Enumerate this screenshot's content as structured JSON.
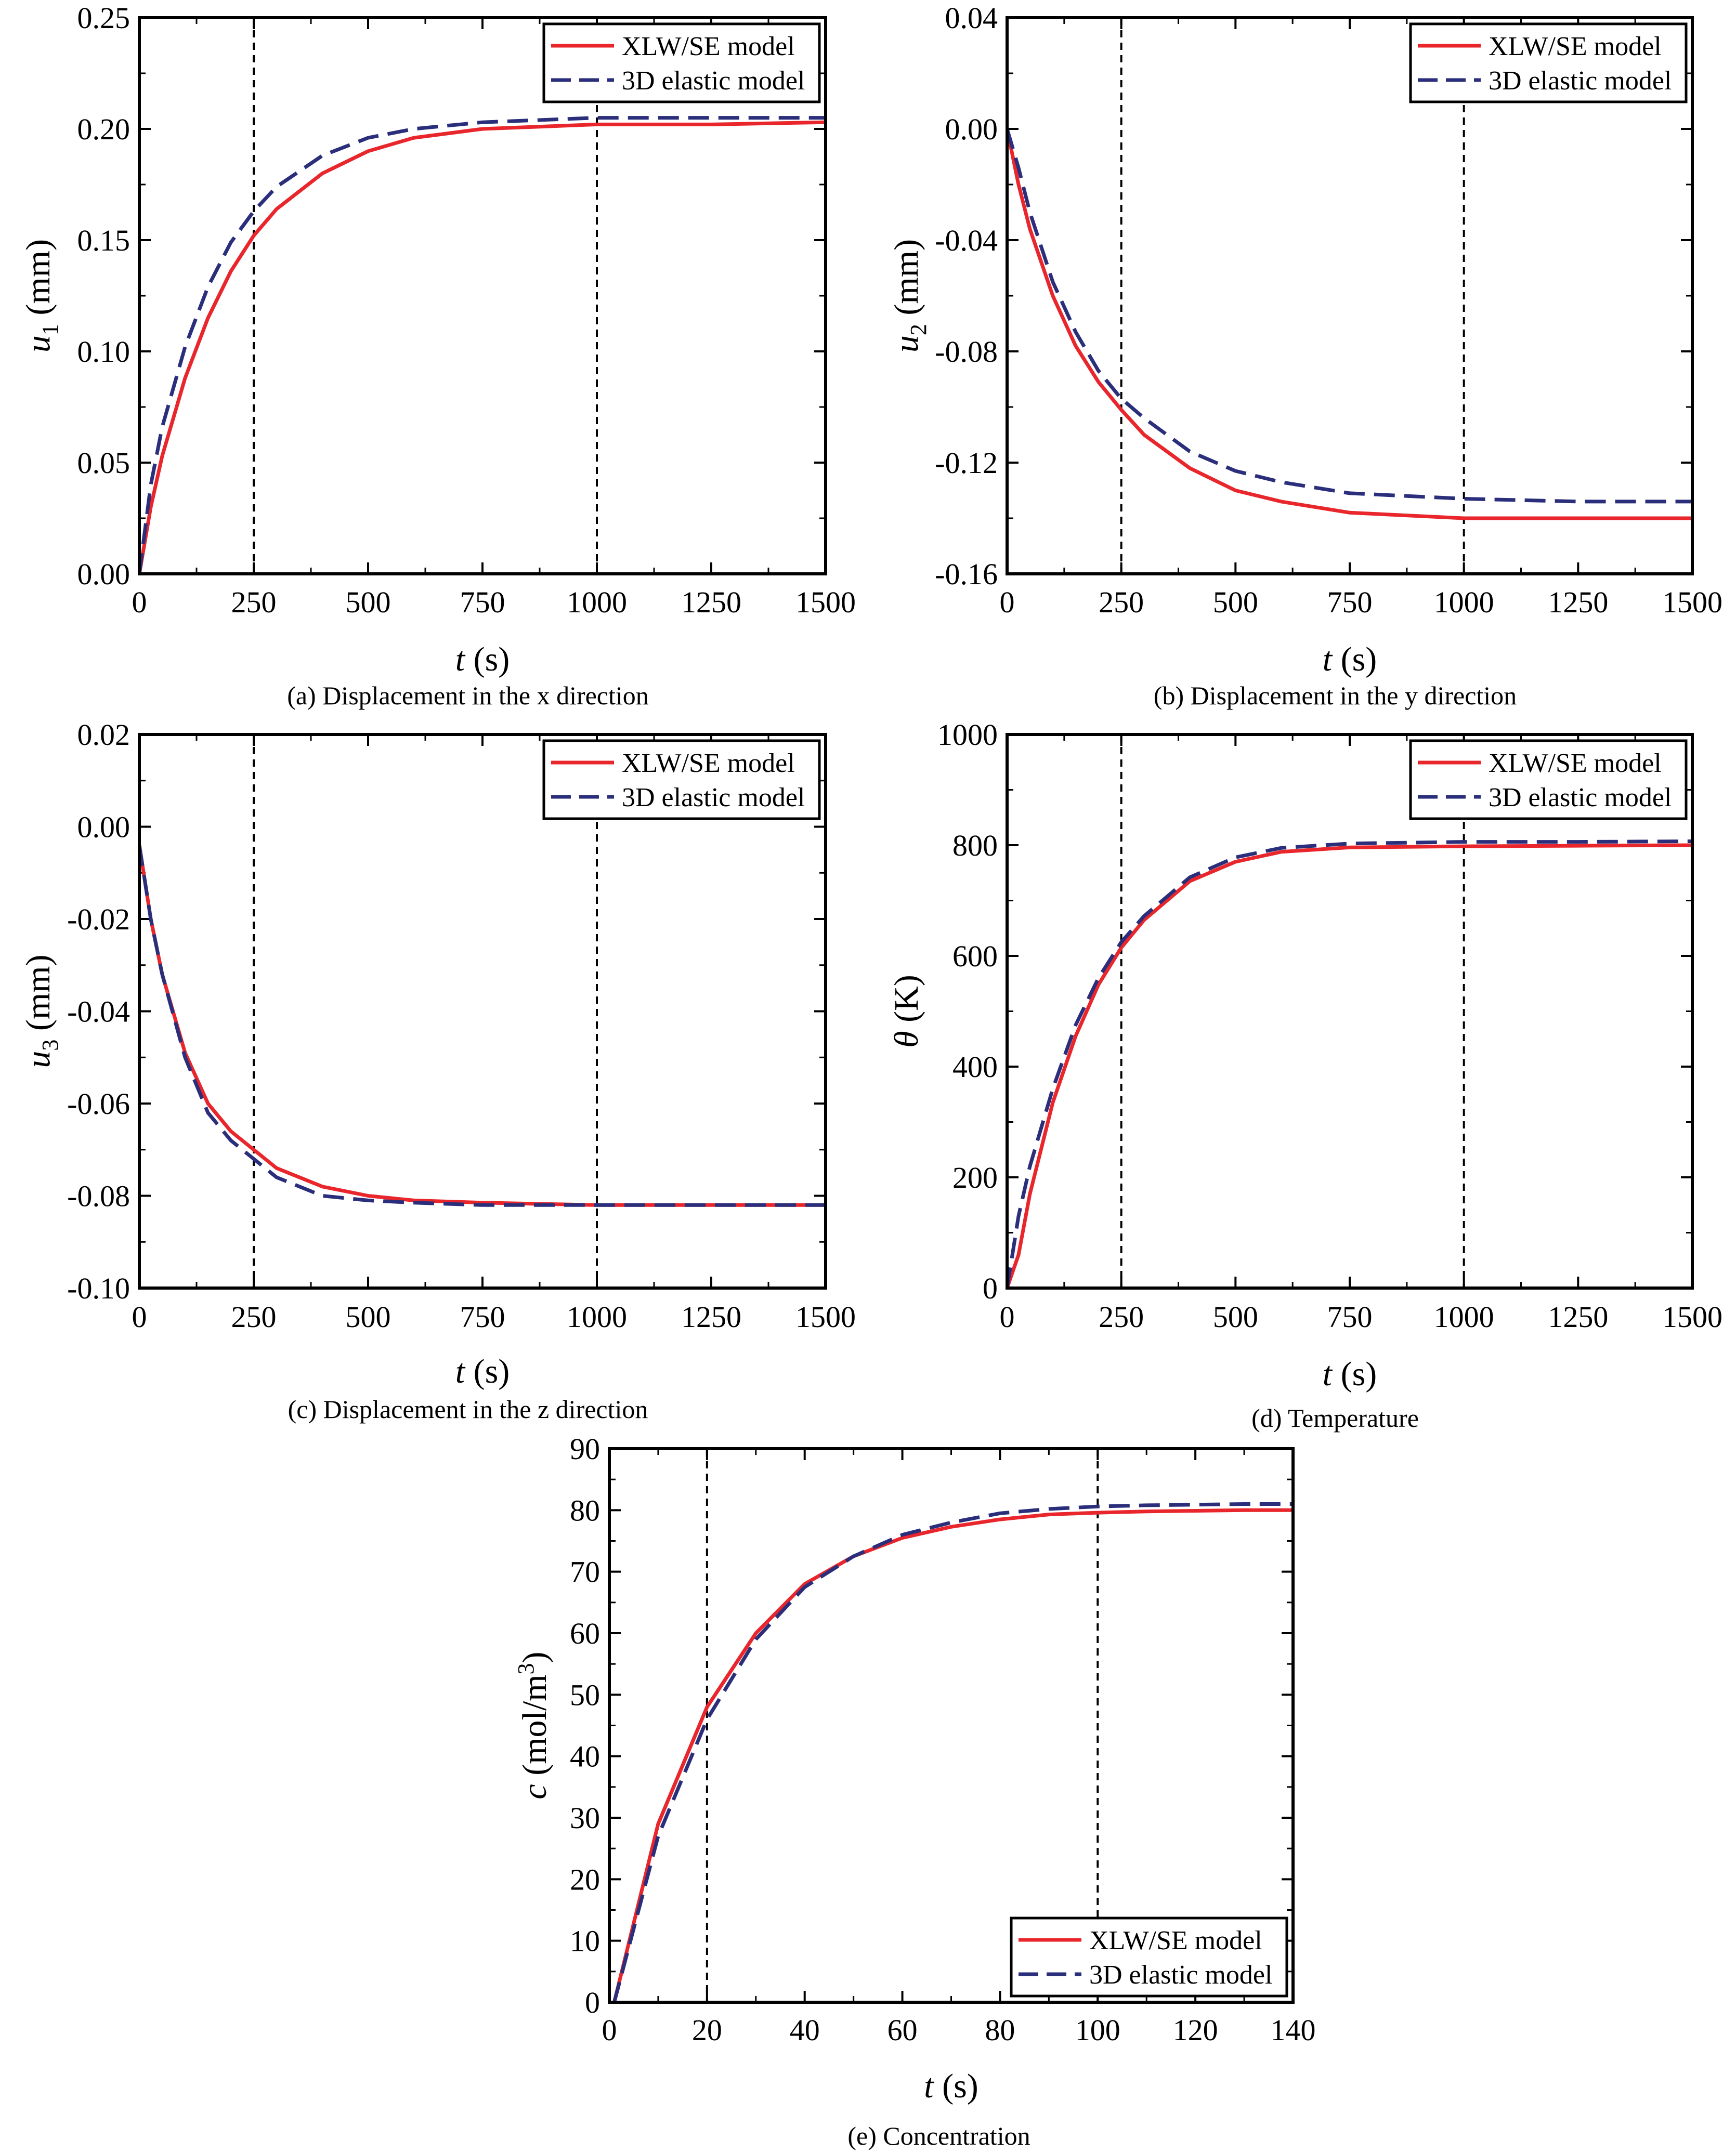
{
  "figure": {
    "panels": [
      {
        "id": "a",
        "caption": "(a) Displacement in the x direction",
        "ylabel_symbol": "u",
        "ylabel_subscript": "1",
        "ylabel_unit": " (mm)",
        "xlabel_symbol": "t",
        "xlabel_unit": " (s)",
        "xlim": [
          0,
          1500
        ],
        "ylim": [
          0,
          0.25
        ],
        "x_ticks": [
          0,
          250,
          500,
          750,
          1000,
          1250,
          1500
        ],
        "y_ticks": [
          0,
          0.05,
          0.1,
          0.15,
          0.2,
          0.25
        ],
        "y_tick_labels": [
          "0.00",
          "0.05",
          "0.10",
          "0.15",
          "0.20",
          "0.25"
        ],
        "x_tick_labels": [
          "0",
          "250",
          "500",
          "750",
          "1000",
          "1250",
          "1500"
        ],
        "vlines": [
          250,
          1000
        ],
        "legend_position": "top-right"
      },
      {
        "id": "b",
        "caption": "(b) Displacement in the y direction",
        "ylabel_symbol": "u",
        "ylabel_subscript": "2",
        "ylabel_unit": " (mm)",
        "xlabel_symbol": "t",
        "xlabel_unit": " (s)",
        "xlim": [
          0,
          1500
        ],
        "ylim": [
          -0.16,
          0.04
        ],
        "x_ticks": [
          0,
          250,
          500,
          750,
          1000,
          1250,
          1500
        ],
        "y_ticks": [
          -0.16,
          -0.12,
          -0.08,
          -0.04,
          0.0,
          0.04
        ],
        "y_tick_labels": [
          "-0.16",
          "-0.12",
          "-0.08",
          "-0.04",
          "0.00",
          "0.04"
        ],
        "x_tick_labels": [
          "0",
          "250",
          "500",
          "750",
          "1000",
          "1250",
          "1500"
        ],
        "vlines": [
          250,
          1000
        ],
        "legend_position": "top-right"
      },
      {
        "id": "c",
        "caption": "(c) Displacement in the z direction",
        "ylabel_symbol": "u",
        "ylabel_subscript": "3",
        "ylabel_unit": " (mm)",
        "xlabel_symbol": "t",
        "xlabel_unit": " (s)",
        "xlim": [
          0,
          1500
        ],
        "ylim": [
          -0.1,
          0.02
        ],
        "x_ticks": [
          0,
          250,
          500,
          750,
          1000,
          1250,
          1500
        ],
        "y_ticks": [
          -0.1,
          -0.08,
          -0.06,
          -0.04,
          -0.02,
          0.0,
          0.02
        ],
        "y_tick_labels": [
          "-0.10",
          "-0.08",
          "-0.06",
          "-0.04",
          "-0.02",
          "0.00",
          "0.02"
        ],
        "x_tick_labels": [
          "0",
          "250",
          "500",
          "750",
          "1000",
          "1250",
          "1500"
        ],
        "vlines": [
          250,
          1000
        ],
        "legend_position": "top-right"
      },
      {
        "id": "d",
        "caption": "(d) Temperature",
        "ylabel_symbol": "θ",
        "ylabel_subscript": "",
        "ylabel_unit": " (K)",
        "xlabel_symbol": "t",
        "xlabel_unit": " (s)",
        "xlim": [
          0,
          1500
        ],
        "ylim": [
          0,
          1000
        ],
        "x_ticks": [
          0,
          250,
          500,
          750,
          1000,
          1250,
          1500
        ],
        "y_ticks": [
          0,
          200,
          400,
          600,
          800,
          1000
        ],
        "y_tick_labels": [
          "0",
          "200",
          "400",
          "600",
          "800",
          "1000"
        ],
        "x_tick_labels": [
          "0",
          "250",
          "500",
          "750",
          "1000",
          "1250",
          "1500"
        ],
        "vlines": [
          250,
          1000
        ],
        "legend_position": "top-right"
      },
      {
        "id": "e",
        "caption": "(e) Concentration",
        "ylabel_symbol": "c",
        "ylabel_subscript": "",
        "ylabel_unit": " (mol/m",
        "ylabel_superscript": "3",
        "ylabel_unit_end": ")",
        "xlabel_symbol": "t",
        "xlabel_unit": " (s)",
        "xlim": [
          0,
          140
        ],
        "ylim": [
          0,
          90
        ],
        "x_ticks": [
          0,
          20,
          40,
          60,
          80,
          100,
          120,
          140
        ],
        "y_ticks": [
          0,
          10,
          20,
          30,
          40,
          50,
          60,
          70,
          80,
          90
        ],
        "y_tick_labels": [
          "0",
          "10",
          "20",
          "30",
          "40",
          "50",
          "60",
          "70",
          "80",
          "90"
        ],
        "x_tick_labels": [
          "0",
          "20",
          "40",
          "60",
          "80",
          "100",
          "120",
          "140"
        ],
        "vlines": [
          20,
          100
        ],
        "legend_position": "bottom-right"
      }
    ]
  },
  "chart_data": [
    {
      "type": "line",
      "title": "(a) Displacement in the x direction",
      "xlabel": "t (s)",
      "ylabel": "u1 (mm)",
      "xlim": [
        0,
        1500
      ],
      "ylim": [
        0,
        0.25
      ],
      "legend": "top-right",
      "grid": false,
      "series": [
        {
          "name": "XLW/SE model",
          "color": "#e8262b",
          "dash": "solid",
          "x": [
            0,
            25,
            50,
            100,
            150,
            200,
            250,
            300,
            400,
            500,
            600,
            750,
            1000,
            1250,
            1500
          ],
          "y": [
            0,
            0.03,
            0.053,
            0.088,
            0.115,
            0.136,
            0.152,
            0.164,
            0.18,
            0.19,
            0.196,
            0.2,
            0.202,
            0.202,
            0.203
          ]
        },
        {
          "name": "3D elastic model",
          "color": "#2b2f7b",
          "dash": "dashed",
          "x": [
            0,
            25,
            50,
            100,
            150,
            200,
            250,
            300,
            400,
            500,
            600,
            750,
            1000,
            1250,
            1500
          ],
          "y": [
            0,
            0.04,
            0.066,
            0.102,
            0.129,
            0.149,
            0.163,
            0.174,
            0.188,
            0.196,
            0.2,
            0.203,
            0.205,
            0.205,
            0.205
          ]
        }
      ]
    },
    {
      "type": "line",
      "title": "(b) Displacement in the y direction",
      "xlabel": "t (s)",
      "ylabel": "u2 (mm)",
      "xlim": [
        0,
        1500
      ],
      "ylim": [
        -0.16,
        0.04
      ],
      "legend": "top-right",
      "grid": false,
      "series": [
        {
          "name": "XLW/SE model",
          "color": "#e8262b",
          "dash": "solid",
          "x": [
            0,
            25,
            50,
            100,
            150,
            200,
            250,
            300,
            400,
            500,
            600,
            750,
            1000,
            1250,
            1500
          ],
          "y": [
            0,
            -0.02,
            -0.036,
            -0.06,
            -0.078,
            -0.091,
            -0.101,
            -0.11,
            -0.122,
            -0.13,
            -0.134,
            -0.138,
            -0.14,
            -0.14,
            -0.14
          ]
        },
        {
          "name": "3D elastic model",
          "color": "#2b2f7b",
          "dash": "dashed",
          "x": [
            0,
            25,
            50,
            100,
            150,
            200,
            250,
            300,
            400,
            500,
            600,
            750,
            1000,
            1250,
            1500
          ],
          "y": [
            0,
            -0.014,
            -0.03,
            -0.055,
            -0.073,
            -0.087,
            -0.097,
            -0.104,
            -0.116,
            -0.123,
            -0.127,
            -0.131,
            -0.133,
            -0.134,
            -0.134
          ]
        }
      ]
    },
    {
      "type": "line",
      "title": "(c) Displacement in the z direction",
      "xlabel": "t (s)",
      "ylabel": "u3 (mm)",
      "xlim": [
        0,
        1500
      ],
      "ylim": [
        -0.1,
        0.02
      ],
      "legend": "top-right",
      "grid": false,
      "series": [
        {
          "name": "XLW/SE model",
          "color": "#e8262b",
          "dash": "solid",
          "x": [
            0,
            25,
            50,
            100,
            150,
            200,
            250,
            300,
            400,
            500,
            600,
            750,
            1000,
            1250,
            1500
          ],
          "y": [
            -0.004,
            -0.02,
            -0.032,
            -0.049,
            -0.06,
            -0.066,
            -0.07,
            -0.074,
            -0.078,
            -0.08,
            -0.081,
            -0.0815,
            -0.082,
            -0.082,
            -0.082
          ]
        },
        {
          "name": "3D elastic model",
          "color": "#2b2f7b",
          "dash": "dashed",
          "x": [
            0,
            25,
            50,
            100,
            150,
            200,
            250,
            300,
            400,
            500,
            600,
            750,
            1000,
            1250,
            1500
          ],
          "y": [
            -0.004,
            -0.02,
            -0.032,
            -0.05,
            -0.062,
            -0.068,
            -0.072,
            -0.076,
            -0.08,
            -0.081,
            -0.0815,
            -0.082,
            -0.082,
            -0.082,
            -0.082
          ]
        }
      ]
    },
    {
      "type": "line",
      "title": "(d) Temperature",
      "xlabel": "t (s)",
      "ylabel": "θ (K)",
      "xlim": [
        0,
        1500
      ],
      "ylim": [
        0,
        1000
      ],
      "legend": "top-right",
      "grid": false,
      "series": [
        {
          "name": "XLW/SE model",
          "color": "#e8262b",
          "dash": "solid",
          "x": [
            0,
            25,
            50,
            100,
            150,
            200,
            250,
            300,
            400,
            500,
            600,
            750,
            1000,
            1250,
            1500
          ],
          "y": [
            0,
            60,
            170,
            335,
            455,
            548,
            615,
            665,
            735,
            770,
            788,
            796,
            798,
            799,
            800
          ]
        },
        {
          "name": "3D elastic model",
          "color": "#2b2f7b",
          "dash": "dashed",
          "x": [
            0,
            25,
            50,
            100,
            150,
            200,
            250,
            300,
            400,
            500,
            600,
            750,
            1000,
            1250,
            1500
          ],
          "y": [
            0,
            130,
            220,
            360,
            475,
            560,
            625,
            672,
            742,
            778,
            795,
            803,
            806,
            806,
            807
          ]
        }
      ]
    },
    {
      "type": "line",
      "title": "(e) Concentration",
      "xlabel": "t (s)",
      "ylabel": "c (mol/m3)",
      "xlim": [
        0,
        140
      ],
      "ylim": [
        0,
        90
      ],
      "legend": "bottom-right",
      "grid": false,
      "series": [
        {
          "name": "XLW/SE model",
          "color": "#e8262b",
          "dash": "solid",
          "x": [
            1,
            10,
            20,
            30,
            40,
            50,
            60,
            70,
            80,
            90,
            100,
            110,
            120,
            130,
            140
          ],
          "y": [
            0,
            29,
            48,
            60,
            68,
            72.5,
            75.5,
            77.3,
            78.5,
            79.3,
            79.6,
            79.8,
            79.9,
            80.0,
            80.0
          ]
        },
        {
          "name": "3D elastic model",
          "color": "#2b2f7b",
          "dash": "dashed",
          "x": [
            1,
            10,
            20,
            30,
            40,
            50,
            60,
            70,
            80,
            90,
            100,
            110,
            120,
            130,
            140
          ],
          "y": [
            0,
            27,
            46,
            59,
            67.5,
            72.5,
            76,
            78,
            79.5,
            80.2,
            80.6,
            80.8,
            80.9,
            81.0,
            81.0
          ]
        }
      ]
    }
  ]
}
